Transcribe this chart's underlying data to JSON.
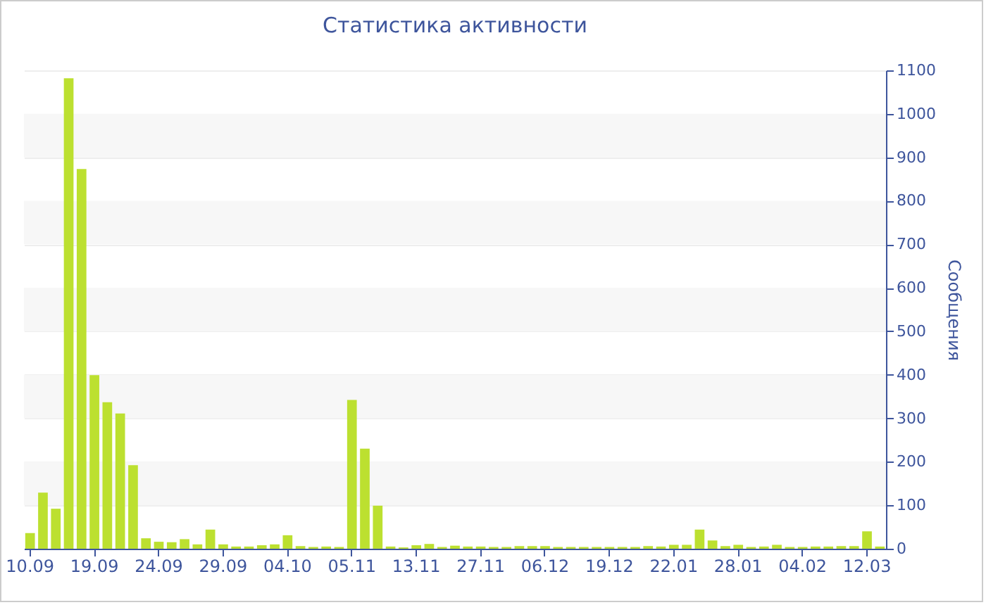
{
  "chart_data": {
    "type": "bar",
    "title": "Статистика активности",
    "ylabel": "Сообщения",
    "categories": [
      "10.09",
      null,
      null,
      null,
      null,
      "19.09",
      null,
      null,
      null,
      null,
      "24.09",
      null,
      null,
      null,
      null,
      "29.09",
      null,
      null,
      null,
      null,
      "04.10",
      null,
      null,
      null,
      null,
      "05.11",
      null,
      null,
      null,
      null,
      "13.11",
      null,
      null,
      null,
      null,
      "27.11",
      null,
      null,
      null,
      null,
      "06.12",
      null,
      null,
      null,
      null,
      "19.12",
      null,
      null,
      null,
      null,
      "22.01",
      null,
      null,
      null,
      null,
      "28.01",
      null,
      null,
      null,
      null,
      "04.02",
      null,
      null,
      null,
      null,
      "12.03",
      null
    ],
    "values": [
      36,
      129,
      92,
      1082,
      873,
      399,
      337,
      311,
      192,
      24,
      16,
      15,
      22,
      10,
      44,
      10,
      5,
      5,
      8,
      10,
      31,
      6,
      4,
      5,
      4,
      342,
      230,
      99,
      5,
      3,
      8,
      11,
      4,
      7,
      5,
      5,
      4,
      4,
      6,
      6,
      6,
      4,
      4,
      4,
      4,
      4,
      4,
      4,
      6,
      5,
      9,
      9,
      44,
      19,
      6,
      9,
      4,
      5,
      9,
      4,
      4,
      5,
      5,
      6,
      6,
      40,
      5
    ],
    "color": "#bce030",
    "ylim": [
      0,
      1100
    ],
    "yticks": [
      0,
      100,
      200,
      300,
      400,
      500,
      600,
      700,
      800,
      900,
      1000,
      1100
    ],
    "grid": "y"
  }
}
